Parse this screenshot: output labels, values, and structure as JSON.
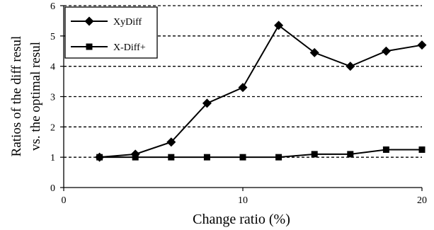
{
  "chart_data": {
    "type": "line",
    "title": "",
    "xlabel": "Change ratio (%)",
    "ylabel_lines": [
      "Ratios of the diff resul",
      "vs. the optimal resul"
    ],
    "xlim": [
      0,
      20
    ],
    "ylim": [
      0,
      6
    ],
    "x_ticks": [
      0,
      10,
      20
    ],
    "y_ticks": [
      0,
      1,
      2,
      3,
      4,
      5,
      6
    ],
    "grid": "horizontal dashed",
    "legend_position": "top-left",
    "x": [
      2,
      4,
      6,
      8,
      10,
      12,
      14,
      16,
      18,
      20
    ],
    "series": [
      {
        "name": "XyDiff",
        "marker": "diamond",
        "values": [
          1.0,
          1.1,
          1.5,
          2.78,
          3.3,
          5.35,
          4.45,
          4.0,
          4.5,
          4.7
        ]
      },
      {
        "name": "X-Diff+",
        "marker": "square",
        "values": [
          1.0,
          1.0,
          1.0,
          1.0,
          1.0,
          1.0,
          1.1,
          1.1,
          1.25,
          1.25
        ]
      }
    ]
  }
}
